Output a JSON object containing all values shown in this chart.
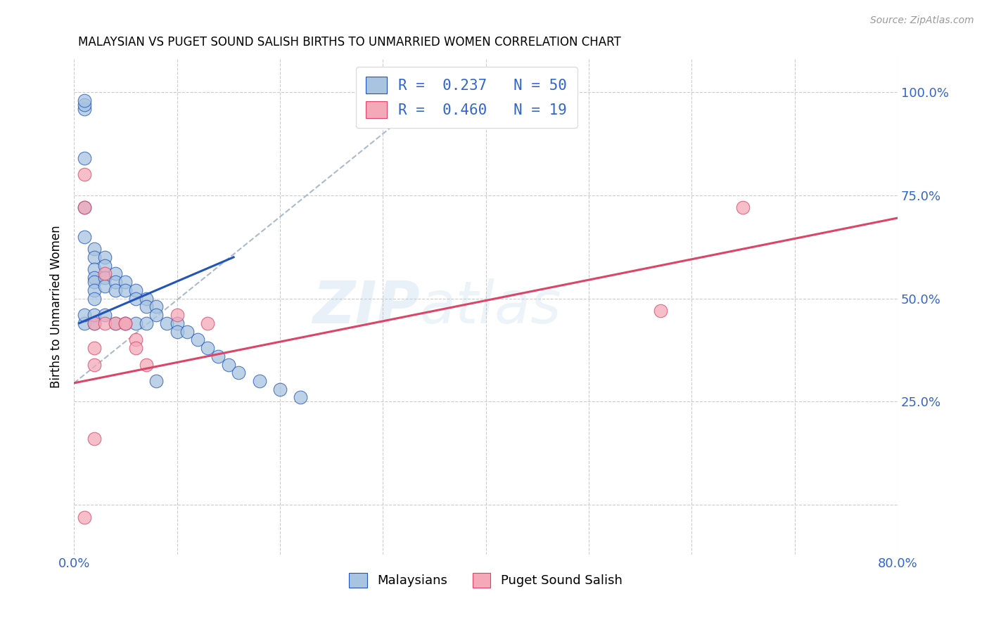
{
  "title": "MALAYSIAN VS PUGET SOUND SALISH BIRTHS TO UNMARRIED WOMEN CORRELATION CHART",
  "source": "Source: ZipAtlas.com",
  "ylabel": "Births to Unmarried Women",
  "xlim": [
    0.0,
    0.8
  ],
  "ylim": [
    -0.12,
    1.08
  ],
  "yticks": [
    0.0,
    0.25,
    0.5,
    0.75,
    1.0
  ],
  "ytick_labels": [
    "",
    "25.0%",
    "50.0%",
    "75.0%",
    "100.0%"
  ],
  "xticks": [
    0.0,
    0.1,
    0.2,
    0.3,
    0.4,
    0.5,
    0.6,
    0.7,
    0.8
  ],
  "xtick_labels": [
    "0.0%",
    "",
    "",
    "",
    "",
    "",
    "",
    "",
    "80.0%"
  ],
  "malaysian_color": "#a8c4e0",
  "salish_color": "#f4a8b8",
  "trendline_malaysian_color": "#2255bb",
  "trendline_salish_color": "#dd4466",
  "dashed_line_color": "#aabbcc",
  "legend_r1": "R =  0.237   N = 50",
  "legend_r2": "R =  0.460   N = 19",
  "watermark": "ZIPatlas",
  "malaysians_x": [
    0.01,
    0.01,
    0.01,
    0.01,
    0.01,
    0.01,
    0.02,
    0.02,
    0.02,
    0.02,
    0.02,
    0.02,
    0.02,
    0.03,
    0.03,
    0.03,
    0.03,
    0.04,
    0.04,
    0.04,
    0.05,
    0.05,
    0.06,
    0.06,
    0.07,
    0.07,
    0.08,
    0.08,
    0.09,
    0.1,
    0.1,
    0.11,
    0.12,
    0.13,
    0.14,
    0.15,
    0.16,
    0.18,
    0.2,
    0.22,
    0.01,
    0.01,
    0.02,
    0.02,
    0.03,
    0.04,
    0.05,
    0.06,
    0.07,
    0.08
  ],
  "malaysians_y": [
    0.96,
    0.97,
    0.98,
    0.84,
    0.72,
    0.65,
    0.62,
    0.6,
    0.57,
    0.55,
    0.54,
    0.52,
    0.5,
    0.6,
    0.58,
    0.55,
    0.53,
    0.56,
    0.54,
    0.52,
    0.54,
    0.52,
    0.52,
    0.5,
    0.5,
    0.48,
    0.48,
    0.46,
    0.44,
    0.44,
    0.42,
    0.42,
    0.4,
    0.38,
    0.36,
    0.34,
    0.32,
    0.3,
    0.28,
    0.26,
    0.44,
    0.46,
    0.44,
    0.46,
    0.46,
    0.44,
    0.44,
    0.44,
    0.44,
    0.3
  ],
  "salish_x": [
    0.01,
    0.01,
    0.01,
    0.02,
    0.02,
    0.02,
    0.03,
    0.03,
    0.04,
    0.05,
    0.05,
    0.06,
    0.06,
    0.07,
    0.1,
    0.13,
    0.57,
    0.65,
    0.02
  ],
  "salish_y": [
    0.8,
    0.72,
    -0.03,
    0.44,
    0.38,
    0.34,
    0.56,
    0.44,
    0.44,
    0.44,
    0.44,
    0.4,
    0.38,
    0.34,
    0.46,
    0.44,
    0.47,
    0.72,
    0.16
  ],
  "malaysian_trendline_x": [
    0.005,
    0.155
  ],
  "malaysian_trendline_y": [
    0.44,
    0.6
  ],
  "salish_trendline_x": [
    0.0,
    0.8
  ],
  "salish_trendline_y": [
    0.295,
    0.695
  ],
  "dashed_line_x": [
    0.0,
    0.375
  ],
  "dashed_line_y": [
    0.295,
    1.05
  ]
}
